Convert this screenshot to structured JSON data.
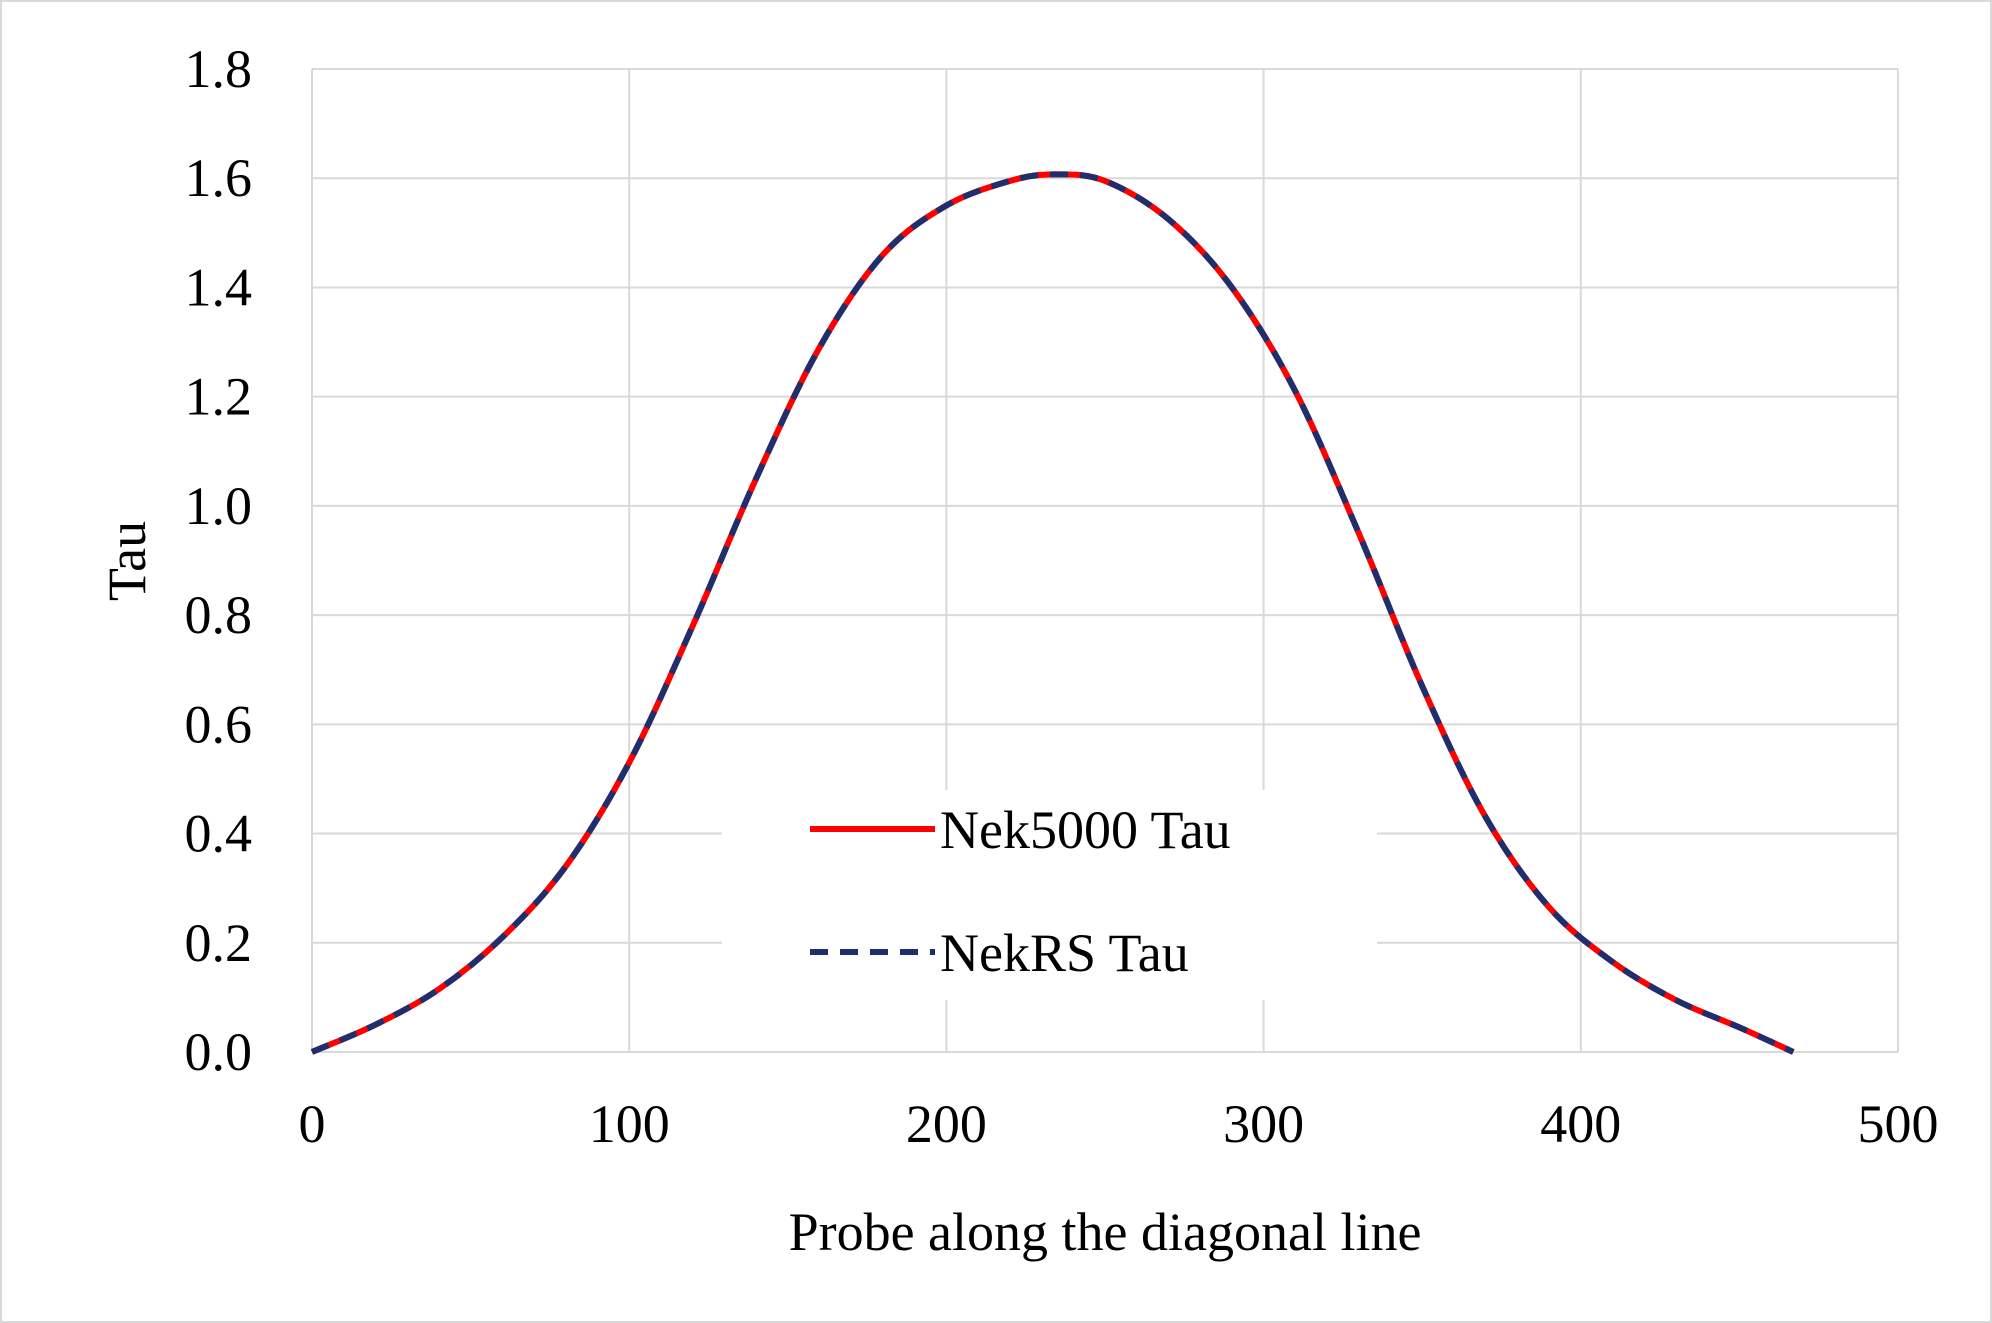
{
  "chart_data": {
    "type": "line",
    "title": "",
    "xlabel": "Probe along the diagonal line",
    "ylabel": "Tau",
    "xlim": [
      0,
      500
    ],
    "ylim": [
      0,
      1.8
    ],
    "xticks": [
      0,
      100,
      200,
      300,
      400,
      500
    ],
    "yticks": [
      0.0,
      0.2,
      0.4,
      0.6,
      0.8,
      1.0,
      1.2,
      1.4,
      1.6,
      1.8
    ],
    "xtick_labels": [
      "0",
      "100",
      "200",
      "300",
      "400",
      "500"
    ],
    "ytick_labels": [
      "0.0",
      "0.2",
      "0.4",
      "0.6",
      "0.8",
      "1.0",
      "1.2",
      "1.4",
      "1.6",
      "1.8"
    ],
    "grid": true,
    "legend_position": "center-bottom",
    "x": [
      0,
      20,
      40,
      60,
      80,
      100,
      120,
      140,
      160,
      180,
      200,
      220,
      234,
      250,
      270,
      290,
      310,
      330,
      350,
      370,
      390,
      410,
      430,
      450,
      467
    ],
    "series": [
      {
        "name": "Nek5000 Tau",
        "color": "#ff0000",
        "style": "solid",
        "values": [
          0.0,
          0.05,
          0.115,
          0.21,
          0.34,
          0.53,
          0.78,
          1.05,
          1.29,
          1.46,
          1.55,
          1.595,
          1.607,
          1.595,
          1.525,
          1.4,
          1.21,
          0.95,
          0.67,
          0.43,
          0.265,
          0.165,
          0.095,
          0.045,
          0.0
        ]
      },
      {
        "name": "NekRS Tau",
        "color": "#1f2f6e",
        "style": "dashed",
        "values": [
          0.0,
          0.05,
          0.115,
          0.21,
          0.34,
          0.53,
          0.78,
          1.05,
          1.29,
          1.46,
          1.55,
          1.595,
          1.607,
          1.595,
          1.525,
          1.4,
          1.21,
          0.95,
          0.67,
          0.43,
          0.265,
          0.165,
          0.095,
          0.045,
          0.0
        ]
      }
    ]
  }
}
